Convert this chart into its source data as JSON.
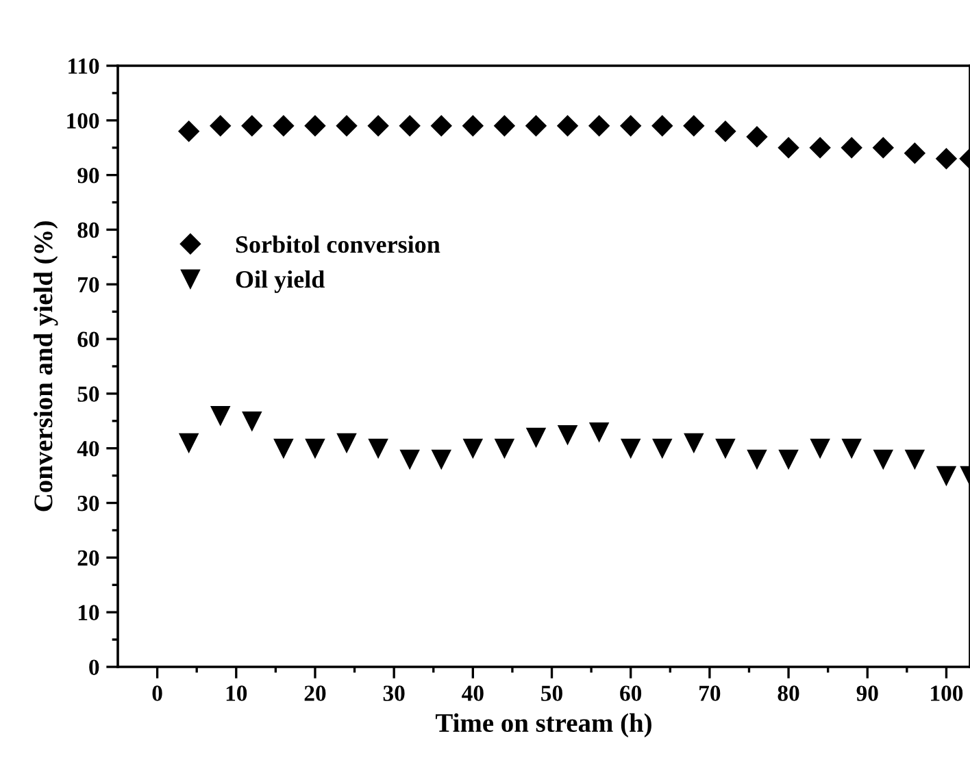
{
  "chart_data": {
    "type": "scatter",
    "xlabel": "Time on stream (h)",
    "ylabel": "Conversion and yield (%)",
    "xlim": [
      -5,
      103
    ],
    "ylim": [
      0,
      110
    ],
    "xticks": [
      0,
      10,
      20,
      30,
      40,
      50,
      60,
      70,
      80,
      90,
      100
    ],
    "yticks": [
      0,
      10,
      20,
      30,
      40,
      50,
      60,
      70,
      80,
      90,
      100,
      110
    ],
    "grid": false,
    "legend": "left",
    "x": [
      4,
      8,
      12,
      16,
      20,
      24,
      28,
      32,
      36,
      40,
      44,
      48,
      52,
      56,
      60,
      64,
      68,
      72,
      76,
      80,
      84,
      88,
      92,
      96,
      100,
      103
    ],
    "series": [
      {
        "name": "Sorbitol conversion",
        "color": "#000000",
        "marker": "diamond",
        "values": [
          98,
          99,
          99,
          99,
          99,
          99,
          99,
          99,
          99,
          99,
          99,
          99,
          99,
          99,
          99,
          99,
          99,
          98,
          97,
          95,
          95,
          95,
          95,
          94,
          93,
          93
        ]
      },
      {
        "name": "Oil yield",
        "color": "#000000",
        "marker": "triangle",
        "values": [
          41,
          46,
          45,
          40,
          40,
          41,
          40,
          38,
          38,
          40,
          40,
          42,
          42.5,
          43,
          40,
          40,
          41,
          40,
          38,
          38,
          40,
          40,
          38,
          38,
          35,
          35
        ]
      }
    ]
  }
}
